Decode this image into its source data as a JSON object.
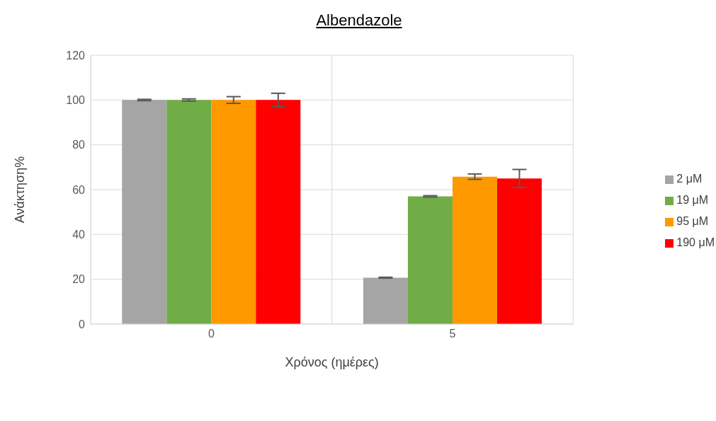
{
  "chart_data": {
    "type": "bar",
    "title": "Albendazole",
    "xlabel": "Χρόνος (ημέρες)",
    "ylabel": "Ανάκτηση%",
    "categories": [
      "0",
      "5"
    ],
    "series": [
      {
        "name": "2 μM",
        "color": "#a5a5a5",
        "values": [
          100,
          20.7
        ],
        "errors": [
          0.3,
          0.2
        ]
      },
      {
        "name": "19 μM",
        "color": "#70ad47",
        "values": [
          100,
          57
        ],
        "errors": [
          0.5,
          0.3
        ]
      },
      {
        "name": "95 μM",
        "color": "#ff9900",
        "values": [
          100,
          65.8
        ],
        "errors": [
          1.5,
          1.2
        ]
      },
      {
        "name": "190 μM",
        "color": "#ff0000",
        "values": [
          100,
          65
        ],
        "errors": [
          3,
          4
        ]
      }
    ],
    "ylim": [
      0,
      120
    ],
    "yticks": [
      0,
      20,
      40,
      60,
      80,
      100,
      120
    ],
    "grid": true,
    "legend": "right"
  }
}
